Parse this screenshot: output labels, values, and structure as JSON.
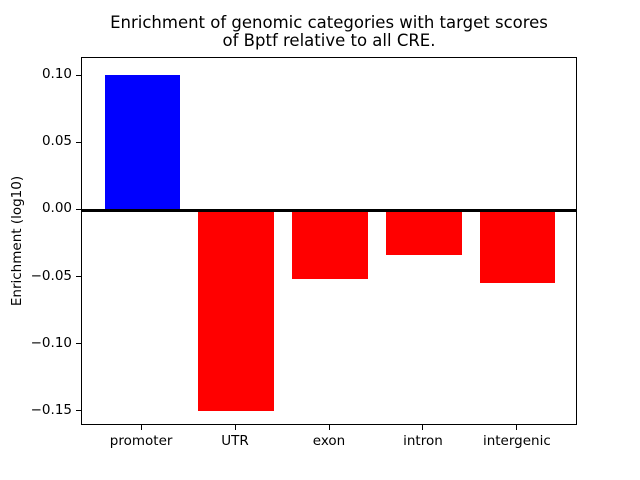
{
  "figure": {
    "title_line1": "Enrichment of genomic categories with target scores",
    "title_line2": "of Bptf relative to all CRE."
  },
  "chart_data": {
    "type": "bar",
    "title": "Enrichment of genomic categories with target scores\nof Bptf relative to all CRE.",
    "categories": [
      "promoter",
      "UTR",
      "exon",
      "intron",
      "intergenic"
    ],
    "values": [
      0.101,
      -0.149,
      -0.051,
      -0.033,
      -0.054
    ],
    "bar_colors": [
      "#0000ff",
      "#ff0000",
      "#ff0000",
      "#ff0000",
      "#ff0000"
    ],
    "xlabel": "",
    "ylabel": "Enrichment (log10)",
    "ylim": [
      -0.1605,
      0.1135
    ],
    "yticks": [
      0.1,
      0.05,
      0.0,
      -0.05,
      -0.1,
      -0.15
    ],
    "ytick_labels": [
      "0.10",
      "0.05",
      "0.00",
      "−0.05",
      "−0.10",
      "−0.15"
    ],
    "zero_line": true,
    "bar_width_fraction": 0.8,
    "x_edge_margin": 0.64,
    "grid": false,
    "legend": null
  }
}
